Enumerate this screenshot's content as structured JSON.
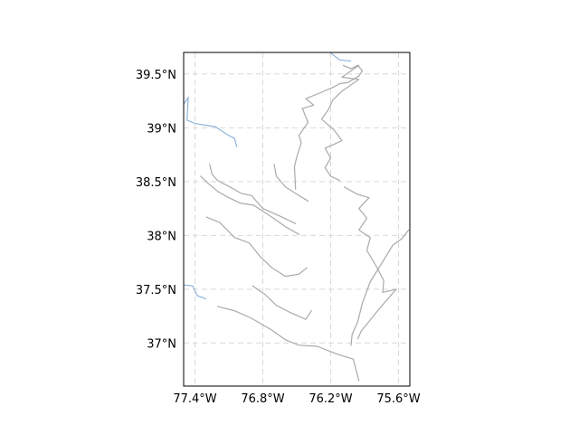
{
  "map": {
    "projection": "PlateCarree",
    "extent": {
      "lon_min": -77.5,
      "lon_max": -75.5,
      "lat_min": 36.6,
      "lat_max": 39.7
    },
    "gridlines": {
      "style": "dashed",
      "color": "#d9d9d9"
    },
    "colors": {
      "coastline": "#aaaaaa",
      "state_boundary": "#8fb3d9",
      "frame": "#000000"
    },
    "lon_ticks": [
      {
        "value": -77.4,
        "label": "77.4°W"
      },
      {
        "value": -76.8,
        "label": "76.8°W"
      },
      {
        "value": -76.2,
        "label": "76.2°W"
      },
      {
        "value": -75.6,
        "label": "75.6°W"
      }
    ],
    "lat_ticks": [
      {
        "value": 39.5,
        "label": "39.5°N"
      },
      {
        "value": 39.0,
        "label": "39°N"
      },
      {
        "value": 38.5,
        "label": "38.5°N"
      },
      {
        "value": 38.0,
        "label": "38°N"
      },
      {
        "value": 37.5,
        "label": "37.5°N"
      },
      {
        "value": 37.0,
        "label": "37°N"
      }
    ],
    "features": {
      "state_boundaries": [
        {
          "name": "boundary-md-pa",
          "coords": [
            [
              -76.23,
              39.72
            ],
            [
              -76.12,
              39.63
            ],
            [
              -76.02,
              39.62
            ]
          ]
        },
        {
          "name": "boundary-va-md-potomac",
          "coords": [
            [
              -77.5,
              39.22
            ],
            [
              -77.46,
              39.28
            ],
            [
              -77.47,
              39.07
            ],
            [
              -77.4,
              39.04
            ],
            [
              -77.22,
              39.01
            ],
            [
              -77.12,
              38.94
            ],
            [
              -77.05,
              38.9
            ],
            [
              -77.03,
              38.82
            ]
          ]
        },
        {
          "name": "boundary-va-nc",
          "coords": [
            [
              -77.5,
              37.54
            ],
            [
              -77.42,
              37.53
            ],
            [
              -77.38,
              37.44
            ],
            [
              -77.3,
              37.41
            ]
          ]
        }
      ],
      "coastlines": [
        {
          "name": "coast-upper-bay-west",
          "coords": [
            [
              -76.09,
              39.58
            ],
            [
              -76.02,
              39.55
            ],
            [
              -75.96,
              39.58
            ],
            [
              -75.92,
              39.53
            ],
            [
              -75.95,
              39.48
            ],
            [
              -76.05,
              39.42
            ],
            [
              -76.12,
              39.41
            ],
            [
              -76.17,
              39.38
            ],
            [
              -76.28,
              39.33
            ],
            [
              -76.42,
              39.27
            ],
            [
              -76.35,
              39.21
            ],
            [
              -76.45,
              39.18
            ],
            [
              -76.4,
              39.05
            ],
            [
              -76.48,
              38.93
            ],
            [
              -76.46,
              38.86
            ],
            [
              -76.5,
              38.73
            ],
            [
              -76.52,
              38.64
            ],
            [
              -76.51,
              38.43
            ]
          ]
        },
        {
          "name": "coast-upper-bay-east",
          "coords": [
            [
              -75.95,
              39.58
            ],
            [
              -76.1,
              39.47
            ],
            [
              -75.95,
              39.45
            ],
            [
              -76.1,
              39.34
            ],
            [
              -76.18,
              39.26
            ],
            [
              -76.22,
              39.17
            ],
            [
              -76.28,
              39.08
            ],
            [
              -76.17,
              38.98
            ],
            [
              -76.1,
              38.88
            ],
            [
              -76.25,
              38.81
            ],
            [
              -76.2,
              38.72
            ],
            [
              -76.25,
              38.63
            ],
            [
              -76.2,
              38.55
            ],
            [
              -76.12,
              38.51
            ]
          ]
        },
        {
          "name": "coast-eastern-shore",
          "coords": [
            [
              -76.08,
              38.45
            ],
            [
              -75.96,
              38.38
            ],
            [
              -75.86,
              38.35
            ],
            [
              -75.95,
              38.25
            ],
            [
              -75.88,
              38.16
            ],
            [
              -75.95,
              38.05
            ],
            [
              -75.85,
              37.98
            ],
            [
              -75.88,
              37.86
            ],
            [
              -75.8,
              37.72
            ],
            [
              -75.73,
              37.58
            ],
            [
              -75.74,
              37.47
            ],
            [
              -75.62,
              37.5
            ],
            [
              -75.72,
              37.38
            ],
            [
              -75.8,
              37.28
            ],
            [
              -75.93,
              37.11
            ],
            [
              -75.96,
              37.04
            ]
          ]
        },
        {
          "name": "coast-atlantic",
          "coords": [
            [
              -75.51,
              38.05
            ],
            [
              -75.57,
              37.97
            ],
            [
              -75.65,
              37.91
            ],
            [
              -75.72,
              37.79
            ],
            [
              -75.85,
              37.57
            ],
            [
              -75.92,
              37.37
            ],
            [
              -75.96,
              37.2
            ],
            [
              -76.01,
              37.08
            ],
            [
              -76.02,
              36.98
            ]
          ]
        },
        {
          "name": "coast-potomac-south",
          "coords": [
            [
              -77.35,
              38.55
            ],
            [
              -77.28,
              38.48
            ],
            [
              -77.2,
              38.41
            ],
            [
              -77.1,
              38.35
            ],
            [
              -77.0,
              38.3
            ],
            [
              -76.88,
              38.28
            ],
            [
              -76.72,
              38.17
            ],
            [
              -76.6,
              38.08
            ],
            [
              -76.48,
              38.01
            ]
          ]
        },
        {
          "name": "coast-potomac-north",
          "coords": [
            [
              -77.27,
              38.66
            ],
            [
              -77.25,
              38.57
            ],
            [
              -77.2,
              38.51
            ],
            [
              -77.09,
              38.45
            ],
            [
              -76.99,
              38.39
            ],
            [
              -76.9,
              38.37
            ],
            [
              -76.8,
              38.25
            ],
            [
              -76.65,
              38.18
            ],
            [
              -76.51,
              38.11
            ]
          ]
        },
        {
          "name": "coast-rappahannock",
          "coords": [
            [
              -77.3,
              38.17
            ],
            [
              -77.18,
              38.12
            ],
            [
              -77.05,
              37.98
            ],
            [
              -76.92,
              37.93
            ],
            [
              -76.82,
              37.8
            ],
            [
              -76.72,
              37.7
            ],
            [
              -76.6,
              37.62
            ],
            [
              -76.48,
              37.64
            ],
            [
              -76.41,
              37.7
            ]
          ]
        },
        {
          "name": "coast-york",
          "coords": [
            [
              -76.89,
              37.53
            ],
            [
              -76.78,
              37.45
            ],
            [
              -76.68,
              37.35
            ],
            [
              -76.55,
              37.28
            ],
            [
              -76.42,
              37.22
            ],
            [
              -76.37,
              37.3
            ]
          ]
        },
        {
          "name": "coast-james",
          "coords": [
            [
              -77.2,
              37.34
            ],
            [
              -77.05,
              37.3
            ],
            [
              -76.9,
              37.23
            ],
            [
              -76.72,
              37.12
            ],
            [
              -76.6,
              37.03
            ],
            [
              -76.48,
              36.98
            ],
            [
              -76.32,
              36.97
            ],
            [
              -76.15,
              36.9
            ],
            [
              -76.0,
              36.85
            ],
            [
              -75.95,
              36.65
            ]
          ]
        },
        {
          "name": "coast-patuxent",
          "coords": [
            [
              -76.7,
              38.66
            ],
            [
              -76.68,
              38.55
            ],
            [
              -76.6,
              38.45
            ],
            [
              -76.48,
              38.37
            ],
            [
              -76.4,
              38.32
            ]
          ]
        }
      ]
    }
  }
}
